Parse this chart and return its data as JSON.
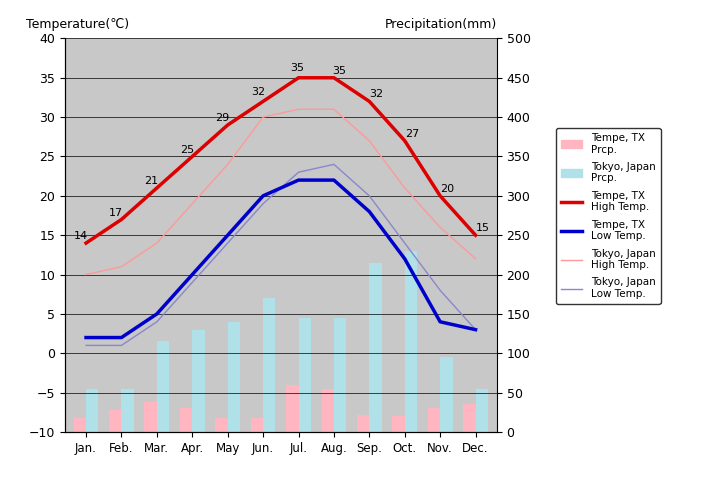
{
  "months": [
    "Jan.",
    "Feb.",
    "Mar.",
    "Apr.",
    "May",
    "Jun.",
    "Jul.",
    "Aug.",
    "Sep.",
    "Oct.",
    "Nov.",
    "Dec."
  ],
  "tempe_high": [
    14,
    17,
    21,
    25,
    29,
    32,
    35,
    35,
    32,
    27,
    20,
    15
  ],
  "tempe_low": [
    2,
    2,
    5,
    10,
    15,
    20,
    22,
    22,
    18,
    12,
    4,
    3
  ],
  "tokyo_high": [
    10,
    11,
    14,
    19,
    24,
    30,
    31,
    31,
    27,
    21,
    16,
    12
  ],
  "tokyo_low": [
    1,
    1,
    4,
    9,
    14,
    19,
    23,
    24,
    20,
    14,
    8,
    3
  ],
  "tempe_precip_mm": [
    18,
    28,
    38,
    30,
    18,
    18,
    60,
    55,
    22,
    20,
    30,
    35
  ],
  "tokyo_precip_mm": [
    55,
    55,
    115,
    130,
    140,
    170,
    145,
    145,
    215,
    230,
    95,
    55
  ],
  "tempe_high_labels": [
    14,
    17,
    21,
    25,
    29,
    32,
    35,
    35,
    32,
    27,
    20,
    15
  ],
  "ylim_left": [
    -10,
    40
  ],
  "ylim_right": [
    0,
    500
  ],
  "background_color": "#c8c8c8",
  "bar_color_tempe": "#ffb6c1",
  "bar_color_tokyo": "#b0e0e8",
  "line_tempe_high_color": "#dd0000",
  "line_tempe_low_color": "#0000cc",
  "line_tokyo_high_color": "#ff9999",
  "line_tokyo_low_color": "#8888cc",
  "title_left": "Temperature(℃)",
  "title_right": "Precipitation(mm)",
  "legend_labels": [
    "Tempe, TX\nPrcp.",
    "Tokyo, Japan\nPrcp.",
    "Tempe, TX\nHigh Temp.",
    "Tempe, TX\nLow Temp.",
    "Tokyo, Japan\nHigh Temp.",
    "Tokyo, Japan\nLow Temp."
  ]
}
